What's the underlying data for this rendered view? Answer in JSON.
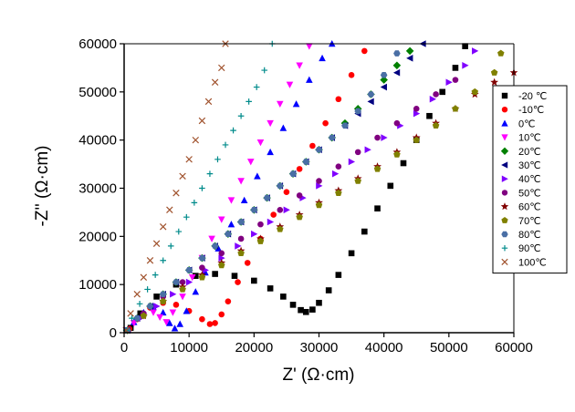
{
  "chart_data": {
    "type": "scatter",
    "title": "",
    "xlabel": "Z' (Ω·cm)",
    "ylabel": "-Z'' (Ω·cm)",
    "xlim": [
      0,
      60000
    ],
    "ylim": [
      0,
      60000
    ],
    "xticks": [
      "0",
      "10000",
      "20000",
      "30000",
      "40000",
      "50000",
      "60000"
    ],
    "yticks": [
      "0",
      "10000",
      "20000",
      "30000",
      "40000",
      "50000",
      "60000"
    ],
    "grid": false,
    "legend_position": "right",
    "series": [
      {
        "name": "-20 ℃",
        "color": "#000000",
        "marker": "square",
        "x": [
          1000,
          2500,
          5000,
          8000,
          11000,
          14000,
          17000,
          20000,
          22500,
          24500,
          26000,
          27200,
          28000,
          29000,
          30000,
          31500,
          33000,
          35000,
          37000,
          39000,
          41000,
          43000,
          45000,
          47000,
          49000,
          51000,
          52500
        ],
        "y": [
          1000,
          4000,
          7500,
          10000,
          11800,
          12200,
          11800,
          10800,
          9200,
          7500,
          5800,
          4700,
          4300,
          4800,
          6200,
          8800,
          12000,
          16500,
          21000,
          25800,
          30500,
          35200,
          40000,
          45000,
          50000,
          55000,
          59500
        ]
      },
      {
        "name": "-10℃",
        "color": "#ff0000",
        "marker": "circle",
        "x": [
          800,
          2000,
          4000,
          6000,
          8000,
          10000,
          12000,
          13200,
          14000,
          15000,
          16000,
          17500,
          19000,
          21000,
          23000,
          25000,
          27000,
          29000,
          31000,
          33000,
          35000,
          37000
        ],
        "y": [
          800,
          2800,
          5200,
          6200,
          5800,
          4500,
          2800,
          1800,
          2000,
          3800,
          6500,
          10500,
          14500,
          19500,
          24500,
          29200,
          34000,
          38800,
          43500,
          48500,
          53500,
          58500
        ]
      },
      {
        "name": "0℃",
        "color": "#0000ff",
        "marker": "triangle-up",
        "x": [
          600,
          1500,
          3000,
          4500,
          6000,
          7000,
          7800,
          8600,
          9600,
          11000,
          12500,
          14500,
          16500,
          18500,
          20500,
          22500,
          24500,
          26500,
          28500,
          30500,
          32000
        ],
        "y": [
          600,
          2200,
          4200,
          5300,
          4200,
          2000,
          900,
          1800,
          4500,
          8500,
          12500,
          17500,
          22500,
          27500,
          32500,
          37500,
          42500,
          47500,
          52500,
          57000,
          60000
        ]
      },
      {
        "name": "10℃",
        "color": "#ff00ff",
        "marker": "triangle-down",
        "x": [
          500,
          1500,
          3000,
          4500,
          5500,
          6500,
          7500,
          9000,
          10500,
          12000,
          13500,
          15000,
          16500,
          18000,
          19500,
          21000,
          22500,
          24000,
          25500,
          27000,
          28500
        ],
        "y": [
          500,
          2000,
          3500,
          4200,
          3200,
          2200,
          4200,
          7500,
          11500,
          15500,
          19500,
          23500,
          27500,
          31500,
          35500,
          39500,
          43500,
          47500,
          51500,
          55500,
          59500
        ]
      },
      {
        "name": "20℃",
        "color": "#008000",
        "marker": "diamond",
        "x": [
          500,
          2000,
          4000,
          6000,
          8000,
          10000,
          12000,
          14000,
          16000,
          18000,
          20000,
          22000,
          24000,
          26000,
          28000,
          30000,
          32000,
          34000,
          36000,
          38000,
          40000,
          42000,
          44000
        ],
        "y": [
          500,
          3000,
          5500,
          8000,
          10500,
          13000,
          15500,
          18000,
          20500,
          23000,
          25500,
          28000,
          30500,
          33000,
          35500,
          38000,
          40500,
          43500,
          46500,
          49500,
          52500,
          55500,
          58500
        ]
      },
      {
        "name": "30℃",
        "color": "#000080",
        "marker": "triangle-left",
        "x": [
          500,
          2000,
          4000,
          6000,
          8000,
          10000,
          12000,
          14000,
          16000,
          18000,
          20000,
          22000,
          24000,
          26000,
          28000,
          30000,
          32000,
          34000,
          36000,
          38000,
          40000,
          42000,
          44000,
          46000
        ],
        "y": [
          500,
          3000,
          5500,
          8000,
          10500,
          13000,
          15500,
          18000,
          20500,
          23000,
          25500,
          28000,
          30500,
          33000,
          35500,
          38000,
          40500,
          43000,
          45500,
          48000,
          51000,
          54000,
          57000,
          60000
        ]
      },
      {
        "name": "40℃",
        "color": "#8000ff",
        "marker": "triangle-right",
        "x": [
          500,
          2500,
          5000,
          7500,
          10000,
          12500,
          15000,
          17500,
          20000,
          22500,
          25000,
          27500,
          30000,
          32500,
          35000,
          37500,
          40000,
          42500,
          45000,
          47500,
          50000,
          52500,
          54000
        ],
        "y": [
          500,
          3000,
          5500,
          8000,
          10500,
          13000,
          15500,
          18000,
          20500,
          23000,
          25500,
          28000,
          30500,
          33000,
          35500,
          38000,
          40500,
          43000,
          45500,
          48500,
          52000,
          55500,
          58500
        ]
      },
      {
        "name": "50℃",
        "color": "#800080",
        "marker": "circle",
        "x": [
          500,
          3000,
          6000,
          9000,
          12000,
          15000,
          18000,
          21000,
          24000,
          27000,
          30000,
          33000,
          36000,
          39000,
          42000,
          45000,
          48000,
          51000
        ],
        "y": [
          500,
          4000,
          7500,
          10500,
          13500,
          16500,
          19500,
          22500,
          25500,
          28500,
          31500,
          34500,
          37500,
          40500,
          43500,
          46500,
          49500,
          52500
        ]
      },
      {
        "name": "60℃",
        "color": "#800000",
        "marker": "star",
        "x": [
          500,
          3000,
          6000,
          9000,
          12000,
          15000,
          18000,
          21000,
          24000,
          27000,
          30000,
          33000,
          36000,
          39000,
          42000,
          45000,
          48000,
          51000,
          54000,
          57000,
          60000
        ],
        "y": [
          500,
          3500,
          6500,
          9500,
          12000,
          14500,
          17000,
          19500,
          22000,
          24500,
          27000,
          29500,
          32000,
          34500,
          37500,
          40500,
          43500,
          46500,
          49500,
          52000,
          54000
        ]
      },
      {
        "name": "70℃",
        "color": "#808000",
        "marker": "pentagon",
        "x": [
          500,
          3000,
          6000,
          9000,
          12000,
          15000,
          18000,
          21000,
          24000,
          27000,
          30000,
          33000,
          36000,
          39000,
          42000,
          45000,
          48000,
          51000,
          54000,
          57000,
          58000
        ],
        "y": [
          500,
          3500,
          6500,
          9000,
          11500,
          14000,
          16500,
          19000,
          21500,
          24000,
          26500,
          29000,
          31500,
          34000,
          37000,
          40000,
          43000,
          46500,
          50000,
          54000,
          58000
        ]
      },
      {
        "name": "80℃",
        "color": "#4a6fa5",
        "marker": "hexagon",
        "x": [
          500,
          2000,
          4000,
          6000,
          8000,
          10000,
          12000,
          14000,
          16000,
          18000,
          20000,
          22000,
          24000,
          26000,
          28000,
          30000,
          32000,
          34000,
          36000,
          38000,
          40000,
          42000
        ],
        "y": [
          500,
          3000,
          5500,
          8000,
          10500,
          13000,
          15500,
          18000,
          20500,
          23000,
          25500,
          28000,
          30500,
          33000,
          35500,
          38000,
          40500,
          43000,
          46000,
          49500,
          53500,
          58000
        ]
      },
      {
        "name": "90℃",
        "color": "#008b8b",
        "marker": "plus",
        "x": [
          300,
          1200,
          2400,
          3600,
          4800,
          6000,
          7200,
          8400,
          9600,
          10800,
          12000,
          13200,
          14400,
          15600,
          16800,
          18000,
          19200,
          20400,
          21600,
          22800
        ],
        "y": [
          500,
          3000,
          6000,
          9000,
          12000,
          15000,
          18000,
          21000,
          24000,
          27000,
          30000,
          33000,
          36000,
          39000,
          42000,
          45000,
          48000,
          51000,
          54500,
          60000
        ]
      },
      {
        "name": "100℃",
        "color": "#a0522d",
        "marker": "cross",
        "x": [
          300,
          1000,
          2000,
          3000,
          4000,
          5000,
          6000,
          7000,
          8000,
          9000,
          10000,
          11000,
          12000,
          13000,
          14000,
          15000,
          15600
        ],
        "y": [
          500,
          4000,
          8000,
          11500,
          15000,
          18500,
          22000,
          25500,
          29000,
          32500,
          36000,
          40000,
          44000,
          48000,
          52000,
          55000,
          60000
        ]
      }
    ]
  }
}
